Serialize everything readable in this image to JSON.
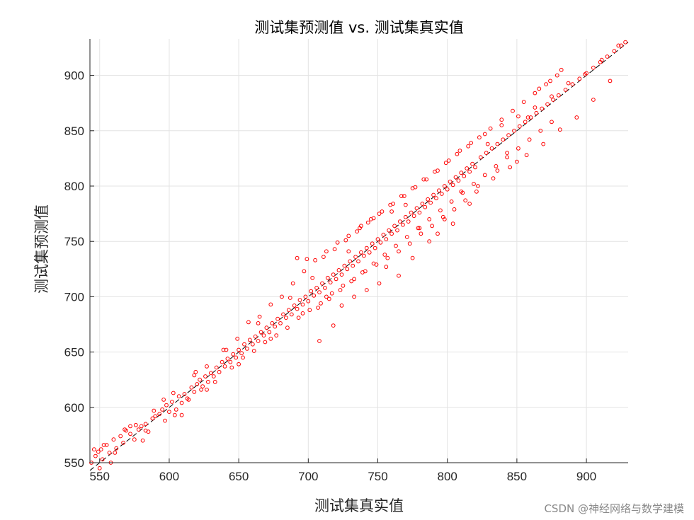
{
  "chart_data": {
    "type": "scatter",
    "title": "测试集预测值 vs. 测试集真实值",
    "xlabel": "测试集真实值",
    "ylabel": "测试集预测值",
    "xlim": [
      543,
      930
    ],
    "ylim": [
      550,
      933
    ],
    "xticks": [
      550,
      600,
      650,
      700,
      750,
      800,
      850,
      900
    ],
    "yticks": [
      550,
      600,
      650,
      700,
      750,
      800,
      850,
      900
    ],
    "grid": true,
    "reference_line": {
      "from": [
        543,
        543
      ],
      "to": [
        930,
        930
      ],
      "style": "dashed",
      "color": "#000000"
    },
    "series": [
      {
        "marker": "circle-open",
        "color": "#ff0000",
        "points": [
          [
            544,
            550
          ],
          [
            547,
            556
          ],
          [
            549,
            560
          ],
          [
            551,
            562
          ],
          [
            552,
            553
          ],
          [
            555,
            566
          ],
          [
            557,
            559
          ],
          [
            560,
            571
          ],
          [
            562,
            563
          ],
          [
            565,
            574
          ],
          [
            567,
            568
          ],
          [
            569,
            579
          ],
          [
            572,
            576
          ],
          [
            575,
            571
          ],
          [
            578,
            580
          ],
          [
            580,
            583
          ],
          [
            583,
            585
          ],
          [
            585,
            578
          ],
          [
            588,
            590
          ],
          [
            590,
            592
          ],
          [
            593,
            594
          ],
          [
            595,
            598
          ],
          [
            598,
            602
          ],
          [
            600,
            596
          ],
          [
            602,
            605
          ],
          [
            605,
            598
          ],
          [
            607,
            610
          ],
          [
            609,
            604
          ],
          [
            611,
            612
          ],
          [
            613,
            608
          ],
          [
            616,
            618
          ],
          [
            618,
            614
          ],
          [
            620,
            621
          ],
          [
            622,
            625
          ],
          [
            624,
            619
          ],
          [
            626,
            628
          ],
          [
            628,
            623
          ],
          [
            630,
            631
          ],
          [
            632,
            628
          ],
          [
            634,
            636
          ],
          [
            636,
            632
          ],
          [
            638,
            641
          ],
          [
            640,
            637
          ],
          [
            642,
            644
          ],
          [
            644,
            641
          ],
          [
            646,
            648
          ],
          [
            648,
            645
          ],
          [
            650,
            652
          ],
          [
            652,
            649
          ],
          [
            654,
            657
          ],
          [
            656,
            653
          ],
          [
            658,
            661
          ],
          [
            660,
            657
          ],
          [
            662,
            664
          ],
          [
            664,
            660
          ],
          [
            666,
            668
          ],
          [
            668,
            665
          ],
          [
            670,
            672
          ],
          [
            672,
            668
          ],
          [
            674,
            676
          ],
          [
            676,
            673
          ],
          [
            678,
            680
          ],
          [
            680,
            676
          ],
          [
            682,
            684
          ],
          [
            684,
            681
          ],
          [
            686,
            688
          ],
          [
            688,
            684
          ],
          [
            690,
            692
          ],
          [
            692,
            689
          ],
          [
            694,
            697
          ],
          [
            696,
            693
          ],
          [
            698,
            700
          ],
          [
            700,
            696
          ],
          [
            702,
            705
          ],
          [
            704,
            701
          ],
          [
            706,
            708
          ],
          [
            708,
            704
          ],
          [
            710,
            712
          ],
          [
            712,
            708
          ],
          [
            714,
            717
          ],
          [
            716,
            713
          ],
          [
            718,
            720
          ],
          [
            720,
            716
          ],
          [
            722,
            724
          ],
          [
            724,
            720
          ],
          [
            726,
            728
          ],
          [
            728,
            725
          ],
          [
            730,
            732
          ],
          [
            732,
            728
          ],
          [
            734,
            736
          ],
          [
            736,
            732
          ],
          [
            738,
            740
          ],
          [
            740,
            737
          ],
          [
            742,
            744
          ],
          [
            744,
            740
          ],
          [
            746,
            748
          ],
          [
            748,
            744
          ],
          [
            750,
            752
          ],
          [
            752,
            749
          ],
          [
            754,
            756
          ],
          [
            756,
            752
          ],
          [
            758,
            760
          ],
          [
            760,
            757
          ],
          [
            762,
            764
          ],
          [
            764,
            760
          ],
          [
            766,
            768
          ],
          [
            768,
            765
          ],
          [
            770,
            772
          ],
          [
            772,
            768
          ],
          [
            774,
            776
          ],
          [
            776,
            773
          ],
          [
            778,
            780
          ],
          [
            780,
            776
          ],
          [
            782,
            784
          ],
          [
            784,
            781
          ],
          [
            786,
            788
          ],
          [
            788,
            785
          ],
          [
            790,
            792
          ],
          [
            792,
            789
          ],
          [
            794,
            796
          ],
          [
            796,
            793
          ],
          [
            798,
            800
          ],
          [
            800,
            797
          ],
          [
            802,
            804
          ],
          [
            804,
            801
          ],
          [
            806,
            808
          ],
          [
            808,
            805
          ],
          [
            810,
            812
          ],
          [
            812,
            809
          ],
          [
            814,
            816
          ],
          [
            816,
            813
          ],
          [
            818,
            820
          ],
          [
            820,
            817
          ],
          [
            824,
            826
          ],
          [
            828,
            830
          ],
          [
            832,
            834
          ],
          [
            836,
            838
          ],
          [
            840,
            842
          ],
          [
            844,
            846
          ],
          [
            848,
            850
          ],
          [
            852,
            854
          ],
          [
            856,
            858
          ],
          [
            860,
            862
          ],
          [
            864,
            866
          ],
          [
            868,
            870
          ],
          [
            872,
            874
          ],
          [
            876,
            878
          ],
          [
            880,
            882
          ],
          [
            885,
            887
          ],
          [
            890,
            892
          ],
          [
            895,
            897
          ],
          [
            900,
            902
          ],
          [
            905,
            907
          ],
          [
            910,
            912
          ],
          [
            915,
            917
          ],
          [
            920,
            922
          ],
          [
            925,
            927
          ],
          [
            928,
            930
          ],
          [
            546,
            562
          ],
          [
            553,
            566
          ],
          [
            561,
            559
          ],
          [
            568,
            580
          ],
          [
            576,
            584
          ],
          [
            583,
            579
          ],
          [
            589,
            597
          ],
          [
            597,
            588
          ],
          [
            603,
            613
          ],
          [
            609,
            593
          ],
          [
            614,
            607
          ],
          [
            619,
            632
          ],
          [
            623,
            616
          ],
          [
            627,
            637
          ],
          [
            633,
            623
          ],
          [
            639,
            652
          ],
          [
            645,
            636
          ],
          [
            649,
            662
          ],
          [
            653,
            645
          ],
          [
            657,
            677
          ],
          [
            661,
            651
          ],
          [
            665,
            682
          ],
          [
            669,
            659
          ],
          [
            673,
            693
          ],
          [
            677,
            665
          ],
          [
            681,
            700
          ],
          [
            685,
            672
          ],
          [
            689,
            712
          ],
          [
            693,
            681
          ],
          [
            697,
            723
          ],
          [
            701,
            688
          ],
          [
            705,
            733
          ],
          [
            709,
            694
          ],
          [
            713,
            741
          ],
          [
            717,
            703
          ],
          [
            721,
            749
          ],
          [
            725,
            710
          ],
          [
            729,
            755
          ],
          [
            733,
            716
          ],
          [
            737,
            762
          ],
          [
            741,
            723
          ],
          [
            745,
            770
          ],
          [
            749,
            729
          ],
          [
            753,
            777
          ],
          [
            757,
            735
          ],
          [
            761,
            784
          ],
          [
            765,
            741
          ],
          [
            769,
            791
          ],
          [
            773,
            748
          ],
          [
            777,
            799
          ],
          [
            781,
            757
          ],
          [
            785,
            806
          ],
          [
            789,
            764
          ],
          [
            793,
            814
          ],
          [
            797,
            772
          ],
          [
            801,
            823
          ],
          [
            805,
            779
          ],
          [
            809,
            832
          ],
          [
            813,
            787
          ],
          [
            817,
            839
          ],
          [
            821,
            795
          ],
          [
            827,
            847
          ],
          [
            833,
            807
          ],
          [
            839,
            855
          ],
          [
            845,
            817
          ],
          [
            851,
            863
          ],
          [
            857,
            828
          ],
          [
            863,
            871
          ],
          [
            869,
            838
          ],
          [
            875,
            881
          ],
          [
            881,
            851
          ],
          [
            887,
            893
          ],
          [
            893,
            862
          ],
          [
            899,
            901
          ],
          [
            905,
            878
          ],
          [
            911,
            914
          ],
          [
            917,
            895
          ],
          [
            923,
            927
          ],
          [
            550,
            545
          ],
          [
            572,
            583
          ],
          [
            596,
            607
          ],
          [
            618,
            629
          ],
          [
            641,
            652
          ],
          [
            664,
            676
          ],
          [
            687,
            699
          ],
          [
            703,
            717
          ],
          [
            711,
            736
          ],
          [
            719,
            743
          ],
          [
            727,
            751
          ],
          [
            735,
            759
          ],
          [
            743,
            767
          ],
          [
            751,
            775
          ],
          [
            759,
            783
          ],
          [
            767,
            791
          ],
          [
            775,
            798
          ],
          [
            783,
            806
          ],
          [
            791,
            813
          ],
          [
            799,
            821
          ],
          [
            807,
            829
          ],
          [
            815,
            836
          ],
          [
            823,
            844
          ],
          [
            831,
            852
          ],
          [
            839,
            860
          ],
          [
            847,
            868
          ],
          [
            855,
            876
          ],
          [
            863,
            884
          ],
          [
            871,
            892
          ],
          [
            879,
            900
          ],
          [
            558,
            550
          ],
          [
            581,
            570
          ],
          [
            604,
            593
          ],
          [
            627,
            616
          ],
          [
            650,
            639
          ],
          [
            673,
            662
          ],
          [
            696,
            685
          ],
          [
            707,
            690
          ],
          [
            715,
            698
          ],
          [
            723,
            706
          ],
          [
            731,
            714
          ],
          [
            739,
            722
          ],
          [
            747,
            730
          ],
          [
            755,
            738
          ],
          [
            763,
            746
          ],
          [
            771,
            754
          ],
          [
            779,
            762
          ],
          [
            787,
            770
          ],
          [
            795,
            778
          ],
          [
            803,
            786
          ],
          [
            811,
            794
          ],
          [
            819,
            802
          ],
          [
            827,
            810
          ],
          [
            835,
            818
          ],
          [
            843,
            826
          ],
          [
            851,
            834
          ],
          [
            859,
            842
          ],
          [
            867,
            850
          ],
          [
            875,
            858
          ],
          [
            692,
            735
          ],
          [
            699,
            734
          ],
          [
            708,
            660
          ],
          [
            713,
            700
          ],
          [
            718,
            674
          ],
          [
            724,
            692
          ],
          [
            729,
            741
          ],
          [
            733,
            700
          ],
          [
            738,
            764
          ],
          [
            742,
            706
          ],
          [
            747,
            771
          ],
          [
            751,
            712
          ],
          [
            756,
            727
          ],
          [
            760,
            777
          ],
          [
            765,
            719
          ],
          [
            770,
            783
          ],
          [
            775,
            735
          ],
          [
            780,
            762
          ],
          [
            787,
            750
          ],
          [
            793,
            757
          ],
          [
            798,
            770
          ],
          [
            804,
            766
          ],
          [
            810,
            795
          ],
          [
            816,
            784
          ],
          [
            822,
            800
          ],
          [
            829,
            838
          ],
          [
            836,
            814
          ],
          [
            843,
            830
          ],
          [
            850,
            822
          ],
          [
            858,
            862
          ],
          [
            866,
            888
          ],
          [
            874,
            895
          ],
          [
            882,
            905
          ]
        ]
      }
    ]
  },
  "watermark": "CSDN @神经网络与数学建模"
}
